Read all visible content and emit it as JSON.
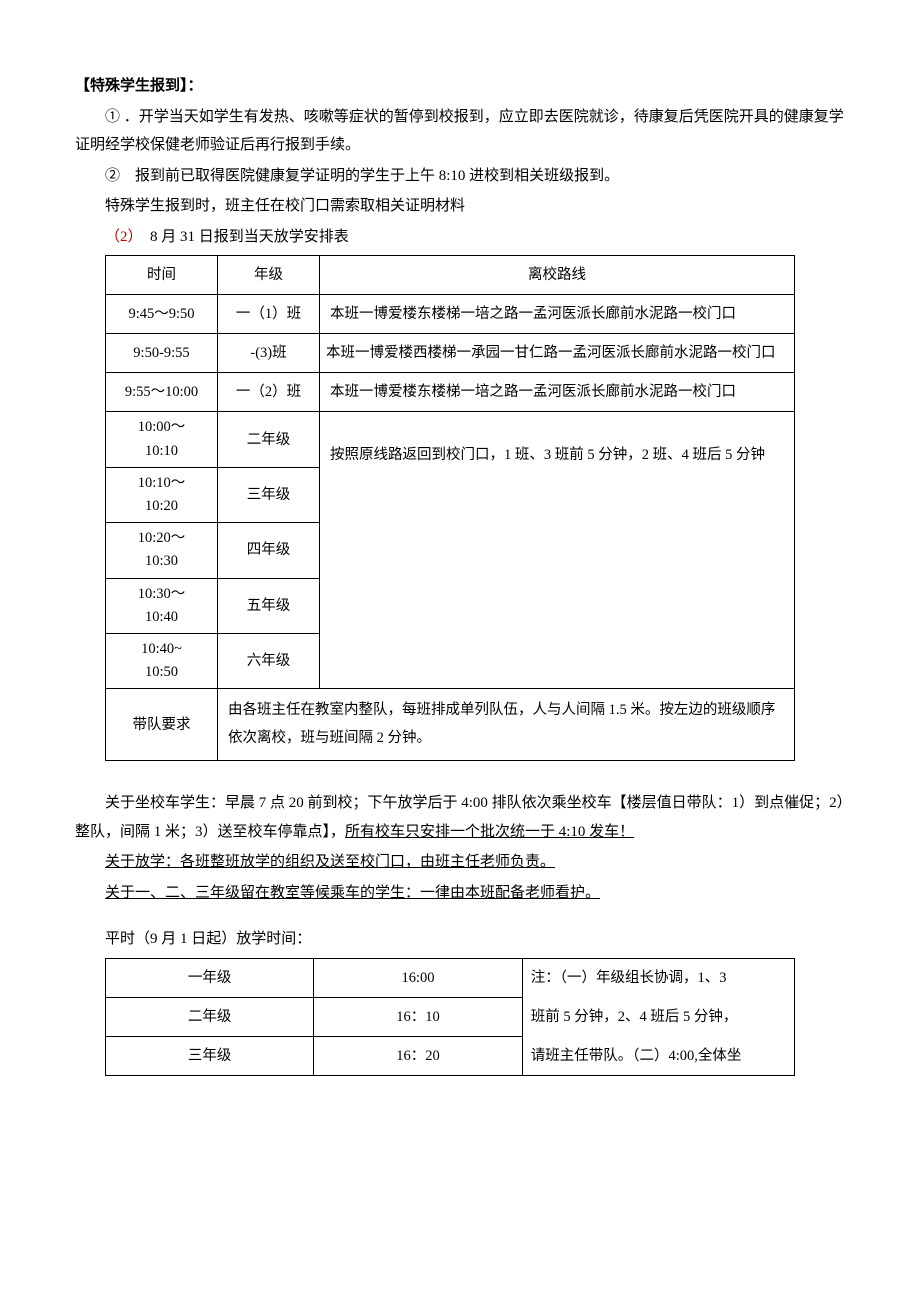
{
  "heading": "【特殊学生报到】：",
  "p1": "①  ．开学当天如学生有发热、咳嗽等症状的暂停到校报到，应立即去医院就诊，待康复后凭医院开具的健康复学证明经学校保健老师验证后再行报到手续。",
  "p2": "②　报到前已取得医院健康复学证明的学生于上午 8:10 进校到相关班级报到。",
  "p3": "特殊学生报到时，班主任在校门口需索取相关证明材料",
  "sec2_num": "（2）",
  "sec2_title": "　8 月 31 日报到当天放学安排表",
  "table1": {
    "columns": [
      "时间",
      "年级",
      "离校路线"
    ],
    "rows": [
      {
        "time": "9:45～9:50",
        "grade": "一（1）班",
        "route": "本班一博爱楼东楼梯一培之路一孟河医派长廊前水泥路一校门口"
      },
      {
        "time": "9:50-9:55",
        "grade": "-(3)班",
        "route": "本班一博爱楼西楼梯一承园一甘仁路一孟河医派长廊前水泥路一校门口"
      },
      {
        "time": "9:55～10:00",
        "grade": "一（2）班",
        "route": "本班一博爱楼东楼梯一培之路一孟河医派长廊前水泥路一校门口"
      }
    ],
    "merged_route": "按照原线路返回到校门口，1 班、3 班前 5 分钟，2 班、4 班后 5 分钟",
    "merged_rows": [
      {
        "time": "10:00～10:10",
        "grade": "二年级"
      },
      {
        "time": "10:10～10:20",
        "grade": "三年级"
      },
      {
        "time": "10:20～10:30",
        "grade": "四年级"
      },
      {
        "time": "10:30～10:40",
        "grade": "五年级"
      },
      {
        "time": "10:40~10:50",
        "grade": "六年级"
      }
    ],
    "footer_label": "带队要求",
    "footer_text": "由各班主任在教室内整队，每班排成单列队伍，人与人间隔 1.5 米。按左边的班级顺序依次离校，班与班间隔 2 分钟。"
  },
  "p_bus": "关于坐校车学生：早晨 7 点 20 前到校；下午放学后于 4:00 排队依次乘坐校车【楼层值日带队：1）到点催促；2）整队，间隔 1 米；3）送至校车停靠点】，",
  "p_bus_ul": "所有校车只安排一个批次统一于 4:10 发车！",
  "p_fangxue": "关于放学：各班整班放学的组织及送至校门口，由班主任老师负责。",
  "p_wait": "关于一、二、三年级留在教室等候乘车的学生：一律由本班配备老师看护。",
  "sec3_title": "平时（9 月 1 日起）放学时间：",
  "table2": {
    "rows": [
      {
        "grade": "一年级",
        "time": "16:00"
      },
      {
        "grade": "二年级",
        "time": "16：10"
      },
      {
        "grade": "三年级",
        "time": "16：20"
      }
    ],
    "note_lines": [
      "注：（一）年级组长协调，1、3",
      "班前 5 分钟，2、4 班后 5 分钟，",
      "请班主任带队。（二）4:00,全体坐"
    ]
  }
}
